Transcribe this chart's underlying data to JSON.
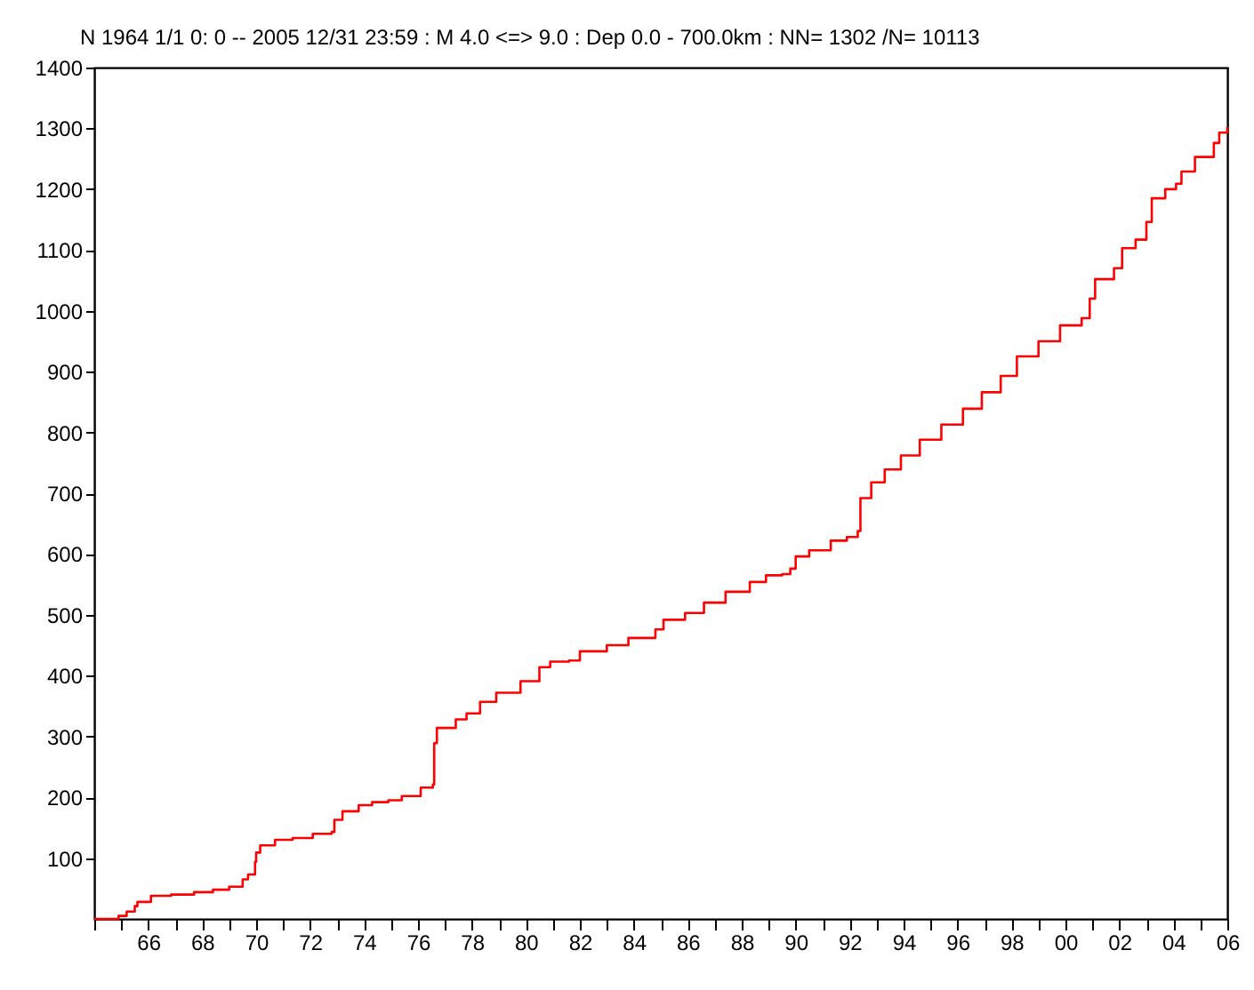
{
  "chart_data": {
    "type": "step",
    "title": "N  1964 1/1  0: 0 -- 2005 12/31 23:59  : M 4.0 <=> 9.0   :  Dep 0.0 - 700.0km :  NN= 1302 /N= 10113",
    "x": [
      1964.0,
      1964.9,
      1965.2,
      1965.5,
      1965.6,
      1966.1,
      1966.85,
      1967.7,
      1968.4,
      1969.0,
      1969.5,
      1969.7,
      1969.96,
      1970.0,
      1970.15,
      1970.7,
      1971.35,
      1972.1,
      1972.8,
      1972.9,
      1973.2,
      1973.8,
      1974.3,
      1974.9,
      1975.4,
      1976.1,
      1976.55,
      1976.6,
      1976.7,
      1977.4,
      1977.8,
      1978.3,
      1978.9,
      1979.8,
      1980.5,
      1980.9,
      1981.6,
      1982.0,
      1983.0,
      1983.8,
      1984.8,
      1985.1,
      1985.9,
      1986.6,
      1987.4,
      1988.3,
      1988.9,
      1989.5,
      1989.8,
      1990.0,
      1990.5,
      1991.3,
      1991.9,
      1992.3,
      1992.4,
      1992.8,
      1993.3,
      1993.9,
      1994.6,
      1995.4,
      1996.2,
      1996.9,
      1997.6,
      1998.2,
      1999.0,
      1999.8,
      2000.6,
      2000.9,
      2001.1,
      2001.8,
      2002.1,
      2002.6,
      2003.0,
      2003.2,
      2003.7,
      2004.1,
      2004.3,
      2004.8,
      2005.5,
      2005.7,
      2006.0
    ],
    "series": [
      {
        "color": "#ff0000",
        "values": [
          0,
          5,
          12,
          21,
          28,
          38,
          40,
          44,
          48,
          53,
          65,
          73,
          94,
          109,
          121,
          130,
          133,
          140,
          143,
          163,
          177,
          187,
          192,
          195,
          202,
          216,
          221,
          289,
          314,
          328,
          338,
          357,
          372,
          391,
          414,
          423,
          425,
          440,
          450,
          462,
          476,
          492,
          503,
          520,
          538,
          554,
          565,
          567,
          576,
          596,
          606,
          622,
          628,
          638,
          692,
          718,
          739,
          762,
          788,
          813,
          839,
          866,
          893,
          925,
          950,
          976,
          988,
          1020,
          1052,
          1070,
          1103,
          1117,
          1146,
          1185,
          1200,
          1209,
          1229,
          1253,
          1276,
          1293,
          1302
        ]
      }
    ],
    "xlim": [
      1964,
      2006
    ],
    "xticks": [
      {
        "value": 1964,
        "label": null
      },
      {
        "value": 1965,
        "label": null
      },
      {
        "value": 1966,
        "label": "66"
      },
      {
        "value": 1967,
        "label": null
      },
      {
        "value": 1968,
        "label": "68"
      },
      {
        "value": 1969,
        "label": null
      },
      {
        "value": 1970,
        "label": "70"
      },
      {
        "value": 1971,
        "label": null
      },
      {
        "value": 1972,
        "label": "72"
      },
      {
        "value": 1973,
        "label": null
      },
      {
        "value": 1974,
        "label": "74"
      },
      {
        "value": 1975,
        "label": null
      },
      {
        "value": 1976,
        "label": "76"
      },
      {
        "value": 1977,
        "label": null
      },
      {
        "value": 1978,
        "label": "78"
      },
      {
        "value": 1979,
        "label": null
      },
      {
        "value": 1980,
        "label": "80"
      },
      {
        "value": 1981,
        "label": null
      },
      {
        "value": 1982,
        "label": "82"
      },
      {
        "value": 1983,
        "label": null
      },
      {
        "value": 1984,
        "label": "84"
      },
      {
        "value": 1985,
        "label": null
      },
      {
        "value": 1986,
        "label": "86"
      },
      {
        "value": 1987,
        "label": null
      },
      {
        "value": 1988,
        "label": "88"
      },
      {
        "value": 1989,
        "label": null
      },
      {
        "value": 1990,
        "label": "90"
      },
      {
        "value": 1991,
        "label": null
      },
      {
        "value": 1992,
        "label": "92"
      },
      {
        "value": 1993,
        "label": null
      },
      {
        "value": 1994,
        "label": "94"
      },
      {
        "value": 1995,
        "label": null
      },
      {
        "value": 1996,
        "label": "96"
      },
      {
        "value": 1997,
        "label": null
      },
      {
        "value": 1998,
        "label": "98"
      },
      {
        "value": 1999,
        "label": null
      },
      {
        "value": 2000,
        "label": "00"
      },
      {
        "value": 2001,
        "label": null
      },
      {
        "value": 2002,
        "label": "02"
      },
      {
        "value": 2003,
        "label": null
      },
      {
        "value": 2004,
        "label": "04"
      },
      {
        "value": 2005,
        "label": null
      },
      {
        "value": 2006,
        "label": "06"
      }
    ],
    "ylim": [
      0,
      1400
    ],
    "yticks": [
      100,
      200,
      300,
      400,
      500,
      600,
      700,
      800,
      900,
      1000,
      1100,
      1200,
      1300,
      1400
    ],
    "grid": false,
    "marker": "none",
    "line_style": "solid"
  }
}
